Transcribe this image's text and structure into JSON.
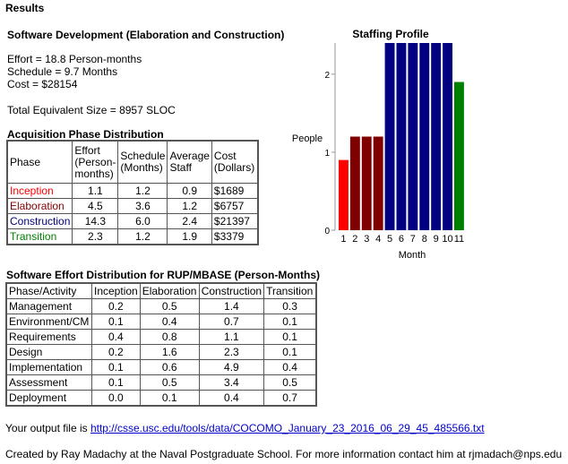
{
  "header": {
    "results": "Results"
  },
  "software_dev": {
    "title": "Software Development (Elaboration and Construction)",
    "effort": "Effort = 18.8 Person-months",
    "schedule": "Schedule = 9.7 Months",
    "cost": "Cost = $28154",
    "size": "Total Equivalent Size = 8957 SLOC"
  },
  "acquisition": {
    "title": "Acquisition Phase Distribution",
    "headers": [
      "Phase",
      "Effort (Person-months)",
      "Schedule (Months)",
      "Average Staff",
      "Cost (Dollars)"
    ],
    "header_lines": [
      [
        "Phase"
      ],
      [
        "Effort",
        "(Person-",
        "months)"
      ],
      [
        "Schedule",
        "(Months)"
      ],
      [
        "Average",
        "Staff"
      ],
      [
        "Cost",
        "(Dollars)"
      ]
    ],
    "rows": [
      {
        "phase": "Inception",
        "color": "#ff0000",
        "effort": "1.1",
        "schedule": "1.2",
        "staff": "0.9",
        "cost": "$1689"
      },
      {
        "phase": "Elaboration",
        "color": "#800000",
        "effort": "4.5",
        "schedule": "3.6",
        "staff": "1.2",
        "cost": "$6757"
      },
      {
        "phase": "Construction",
        "color": "#000080",
        "effort": "14.3",
        "schedule": "6.0",
        "staff": "2.4",
        "cost": "$21397"
      },
      {
        "phase": "Transition",
        "color": "#008000",
        "effort": "2.3",
        "schedule": "1.2",
        "staff": "1.9",
        "cost": "$3379"
      }
    ]
  },
  "rup": {
    "title": "Software Effort Distribution for RUP/MBASE (Person-Months)",
    "headers": [
      "Phase/Activity",
      "Inception",
      "Elaboration",
      "Construction",
      "Transition"
    ],
    "rows": [
      [
        "Management",
        "0.2",
        "0.5",
        "1.4",
        "0.3"
      ],
      [
        "Environment/CM",
        "0.1",
        "0.4",
        "0.7",
        "0.1"
      ],
      [
        "Requirements",
        "0.4",
        "0.8",
        "1.1",
        "0.1"
      ],
      [
        "Design",
        "0.2",
        "1.6",
        "2.3",
        "0.1"
      ],
      [
        "Implementation",
        "0.1",
        "0.6",
        "4.9",
        "0.4"
      ],
      [
        "Assessment",
        "0.1",
        "0.5",
        "3.4",
        "0.5"
      ],
      [
        "Deployment",
        "0.0",
        "0.1",
        "0.4",
        "0.7"
      ]
    ]
  },
  "footer": {
    "output_prefix": "Your output file is ",
    "output_link": "http://csse.usc.edu/tools/data/COCOMO_January_23_2016_06_29_45_485566.txt",
    "credit": "Created by Ray Madachy at the Naval Postgraduate School. For more information contact him at rjmadach@nps.edu"
  },
  "chart_data": {
    "type": "bar",
    "title": "Staffing Profile",
    "xlabel": "Month",
    "ylabel": "People",
    "categories": [
      "1",
      "2",
      "3",
      "4",
      "5",
      "6",
      "7",
      "8",
      "9",
      "10",
      "11"
    ],
    "values": [
      0.9,
      1.2,
      1.2,
      1.2,
      2.4,
      2.4,
      2.4,
      2.4,
      2.4,
      2.4,
      1.9
    ],
    "bar_colors": [
      "#ff0000",
      "#800000",
      "#800000",
      "#800000",
      "#000080",
      "#000080",
      "#000080",
      "#000080",
      "#000080",
      "#000080",
      "#008000"
    ],
    "yticks": [
      "0",
      "1",
      "2"
    ],
    "ylim": [
      0,
      2.4
    ]
  }
}
